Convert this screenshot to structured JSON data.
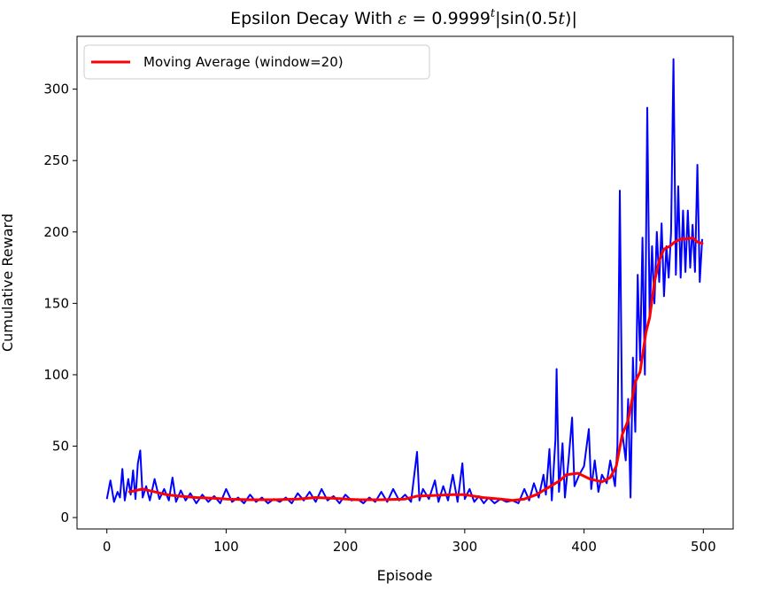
{
  "chart_data": {
    "type": "line",
    "title_main": "Epsilon Decay With ",
    "title_math_epsilon": "ε",
    "title_math_eq": " = 0.9999",
    "title_math_exp": "t",
    "title_math_rest_a": "|sin(0.5",
    "title_math_t": "t",
    "title_math_rest_b": ")|",
    "xlabel": "Episode",
    "ylabel": "Cumulative Reward",
    "xlim": [
      -25,
      525
    ],
    "ylim": [
      -8,
      337
    ],
    "xticks": [
      0,
      100,
      200,
      300,
      400,
      500
    ],
    "yticks": [
      0,
      50,
      100,
      150,
      200,
      250,
      300
    ],
    "grid": false,
    "legend_position": "top-left",
    "series": [
      {
        "color": "#0000ff",
        "raw_keypoints": [
          [
            0,
            13
          ],
          [
            3,
            26
          ],
          [
            6,
            11
          ],
          [
            9,
            18
          ],
          [
            11,
            14
          ],
          [
            13,
            34
          ],
          [
            15,
            12
          ],
          [
            18,
            27
          ],
          [
            20,
            16
          ],
          [
            22,
            33
          ],
          [
            24,
            13
          ],
          [
            26,
            38
          ],
          [
            28,
            47
          ],
          [
            30,
            14
          ],
          [
            33,
            22
          ],
          [
            36,
            12
          ],
          [
            40,
            27
          ],
          [
            44,
            13
          ],
          [
            48,
            20
          ],
          [
            52,
            12
          ],
          [
            55,
            28
          ],
          [
            58,
            11
          ],
          [
            62,
            19
          ],
          [
            66,
            12
          ],
          [
            70,
            17
          ],
          [
            75,
            10
          ],
          [
            80,
            16
          ],
          [
            85,
            11
          ],
          [
            90,
            15
          ],
          [
            95,
            10
          ],
          [
            100,
            20
          ],
          [
            105,
            11
          ],
          [
            110,
            14
          ],
          [
            115,
            10
          ],
          [
            120,
            16
          ],
          [
            125,
            11
          ],
          [
            130,
            14
          ],
          [
            135,
            10
          ],
          [
            140,
            13
          ],
          [
            145,
            11
          ],
          [
            150,
            14
          ],
          [
            155,
            10
          ],
          [
            160,
            17
          ],
          [
            165,
            12
          ],
          [
            170,
            18
          ],
          [
            175,
            11
          ],
          [
            180,
            20
          ],
          [
            185,
            12
          ],
          [
            190,
            15
          ],
          [
            195,
            10
          ],
          [
            200,
            16
          ],
          [
            205,
            12
          ],
          [
            210,
            13
          ],
          [
            215,
            10
          ],
          [
            220,
            14
          ],
          [
            225,
            11
          ],
          [
            230,
            18
          ],
          [
            235,
            11
          ],
          [
            240,
            20
          ],
          [
            245,
            12
          ],
          [
            250,
            16
          ],
          [
            255,
            11
          ],
          [
            260,
            46
          ],
          [
            262,
            12
          ],
          [
            265,
            20
          ],
          [
            270,
            13
          ],
          [
            275,
            26
          ],
          [
            278,
            11
          ],
          [
            282,
            22
          ],
          [
            286,
            12
          ],
          [
            290,
            30
          ],
          [
            294,
            11
          ],
          [
            298,
            38
          ],
          [
            300,
            13
          ],
          [
            304,
            20
          ],
          [
            308,
            11
          ],
          [
            312,
            15
          ],
          [
            316,
            10
          ],
          [
            320,
            14
          ],
          [
            325,
            10
          ],
          [
            330,
            13
          ],
          [
            335,
            11
          ],
          [
            340,
            12
          ],
          [
            345,
            10
          ],
          [
            350,
            20
          ],
          [
            354,
            12
          ],
          [
            358,
            24
          ],
          [
            362,
            14
          ],
          [
            366,
            30
          ],
          [
            368,
            16
          ],
          [
            371,
            48
          ],
          [
            373,
            12
          ],
          [
            376,
            55
          ],
          [
            377,
            104
          ],
          [
            379,
            18
          ],
          [
            382,
            52
          ],
          [
            384,
            14
          ],
          [
            387,
            40
          ],
          [
            390,
            70
          ],
          [
            392,
            22
          ],
          [
            396,
            30
          ],
          [
            400,
            36
          ],
          [
            404,
            62
          ],
          [
            406,
            20
          ],
          [
            409,
            40
          ],
          [
            412,
            18
          ],
          [
            415,
            30
          ],
          [
            419,
            24
          ],
          [
            422,
            40
          ],
          [
            426,
            22
          ],
          [
            428,
            50
          ],
          [
            430,
            229
          ],
          [
            432,
            60
          ],
          [
            435,
            40
          ],
          [
            437,
            83
          ],
          [
            439,
            14
          ],
          [
            441,
            112
          ],
          [
            443,
            60
          ],
          [
            445,
            170
          ],
          [
            447,
            110
          ],
          [
            449,
            196
          ],
          [
            451,
            100
          ],
          [
            453,
            287
          ],
          [
            455,
            140
          ],
          [
            457,
            190
          ],
          [
            459,
            150
          ],
          [
            461,
            200
          ],
          [
            463,
            165
          ],
          [
            465,
            206
          ],
          [
            467,
            155
          ],
          [
            469,
            190
          ],
          [
            471,
            168
          ],
          [
            473,
            200
          ],
          [
            475,
            321
          ],
          [
            477,
            170
          ],
          [
            479,
            232
          ],
          [
            481,
            168
          ],
          [
            483,
            215
          ],
          [
            485,
            172
          ],
          [
            487,
            215
          ],
          [
            489,
            175
          ],
          [
            491,
            205
          ],
          [
            493,
            172
          ],
          [
            495,
            247
          ],
          [
            497,
            165
          ],
          [
            499,
            195
          ]
        ]
      },
      {
        "name": "Moving Average (window=20)",
        "color": "#ff0000",
        "keypoints": [
          [
            19,
            18
          ],
          [
            30,
            20
          ],
          [
            40,
            18
          ],
          [
            50,
            16
          ],
          [
            60,
            15
          ],
          [
            75,
            14
          ],
          [
            90,
            13.5
          ],
          [
            100,
            13
          ],
          [
            120,
            12.5
          ],
          [
            140,
            12.5
          ],
          [
            160,
            13
          ],
          [
            175,
            14
          ],
          [
            190,
            13.5
          ],
          [
            210,
            12.5
          ],
          [
            230,
            12.5
          ],
          [
            250,
            13
          ],
          [
            260,
            15
          ],
          [
            275,
            15.5
          ],
          [
            290,
            16
          ],
          [
            300,
            16
          ],
          [
            315,
            14
          ],
          [
            330,
            13
          ],
          [
            340,
            12
          ],
          [
            350,
            13
          ],
          [
            360,
            16
          ],
          [
            370,
            21
          ],
          [
            380,
            26
          ],
          [
            385,
            30
          ],
          [
            395,
            31
          ],
          [
            405,
            27
          ],
          [
            415,
            25
          ],
          [
            422,
            28
          ],
          [
            427,
            36
          ],
          [
            432,
            58
          ],
          [
            437,
            68
          ],
          [
            443,
            95
          ],
          [
            447,
            102
          ],
          [
            452,
            130
          ],
          [
            455,
            140
          ],
          [
            459,
            165
          ],
          [
            463,
            180
          ],
          [
            467,
            188
          ],
          [
            472,
            190
          ],
          [
            476,
            193
          ],
          [
            481,
            195
          ],
          [
            486,
            195
          ],
          [
            491,
            196
          ],
          [
            495,
            193
          ],
          [
            499,
            192
          ]
        ]
      }
    ]
  }
}
